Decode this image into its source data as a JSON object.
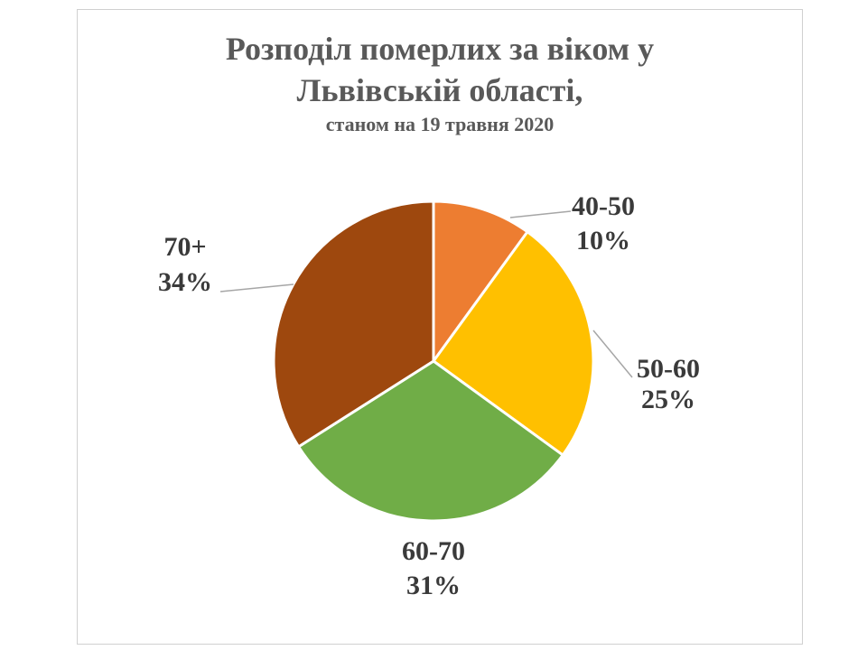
{
  "title_line1": "Розподіл померлих за віком у",
  "title_line2": "Львівській  області,",
  "subtitle": "станом на 19 травня 2020",
  "chart_data": {
    "type": "pie",
    "title": "Розподіл померлих за віком у Львівській  області,",
    "subtitle": "станом на 19 травня 2020",
    "categories": [
      "40-50",
      "50-60",
      "60-70",
      "70+"
    ],
    "values": [
      10,
      25,
      31,
      34
    ],
    "labels": [
      "10%",
      "25%",
      "31%",
      "34%"
    ],
    "colors": [
      "#ED7D31",
      "#FFC000",
      "#70AD47",
      "#9E480E"
    ],
    "legend": "none"
  }
}
